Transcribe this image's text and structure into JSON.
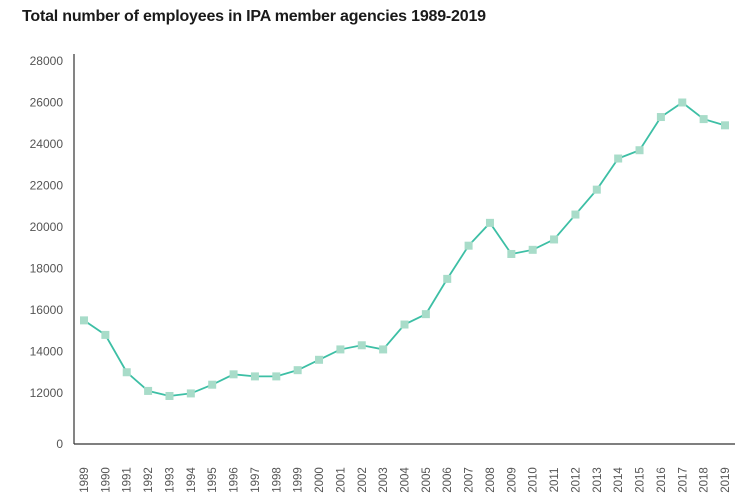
{
  "chart_data": {
    "type": "line",
    "title": "Total number of employees in IPA member agencies 1989-2019",
    "xlabel": "",
    "ylabel": "",
    "y_tick_labels": [
      "0",
      "12000",
      "14000",
      "16000",
      "18000",
      "20000",
      "22000",
      "24000",
      "26000",
      "28000"
    ],
    "y_scale_note": "broken axis: 0 at baseline, then 12000-28000",
    "grid": false,
    "legend": "none",
    "colors": {
      "line": "#3dbfa5",
      "marker": "#a8dcc9",
      "axis": "#333333",
      "text": "#555555"
    },
    "categories": [
      "1989",
      "1990",
      "1991",
      "1992",
      "1993",
      "1994",
      "1995",
      "1996",
      "1997",
      "1998",
      "1999",
      "2000",
      "2001",
      "2002",
      "2003",
      "2004",
      "2005",
      "2006",
      "2007",
      "2008",
      "2009",
      "2010",
      "2011",
      "2012",
      "2013",
      "2014",
      "2015",
      "2016",
      "2017",
      "2018",
      "2019"
    ],
    "series": [
      {
        "values": [
          15500,
          14800,
          13000,
          12100,
          11300,
          11900,
          12400,
          12900,
          12800,
          12800,
          13100,
          13600,
          14100,
          14300,
          14100,
          15300,
          15800,
          17500,
          19100,
          20200,
          18700,
          18900,
          19400,
          20600,
          21800,
          23300,
          23700,
          25300,
          26000,
          25200,
          24900
        ]
      }
    ]
  }
}
